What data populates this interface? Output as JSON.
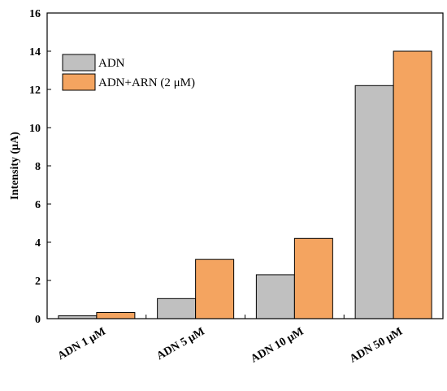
{
  "chart_data": {
    "type": "bar",
    "title": "",
    "xlabel": "",
    "ylabel": "Intensity (μA)",
    "ylim": [
      0,
      16
    ],
    "yticks": [
      "0",
      "2",
      "4",
      "6",
      "8",
      "10",
      "12",
      "14",
      "16"
    ],
    "grid": false,
    "legend_position": "top-left",
    "categories": [
      "ADN 1 μM",
      "ADN 5 μM",
      "ADN 10 μM",
      "ADN 50 μM"
    ],
    "series": [
      {
        "name": "ADN",
        "color": "#c0c0c0",
        "values": [
          0.15,
          1.05,
          2.3,
          12.2
        ]
      },
      {
        "name": "ADN+ARN (2 μM)",
        "color": "#f4a460",
        "values": [
          0.32,
          3.1,
          4.2,
          14.0
        ]
      }
    ]
  }
}
